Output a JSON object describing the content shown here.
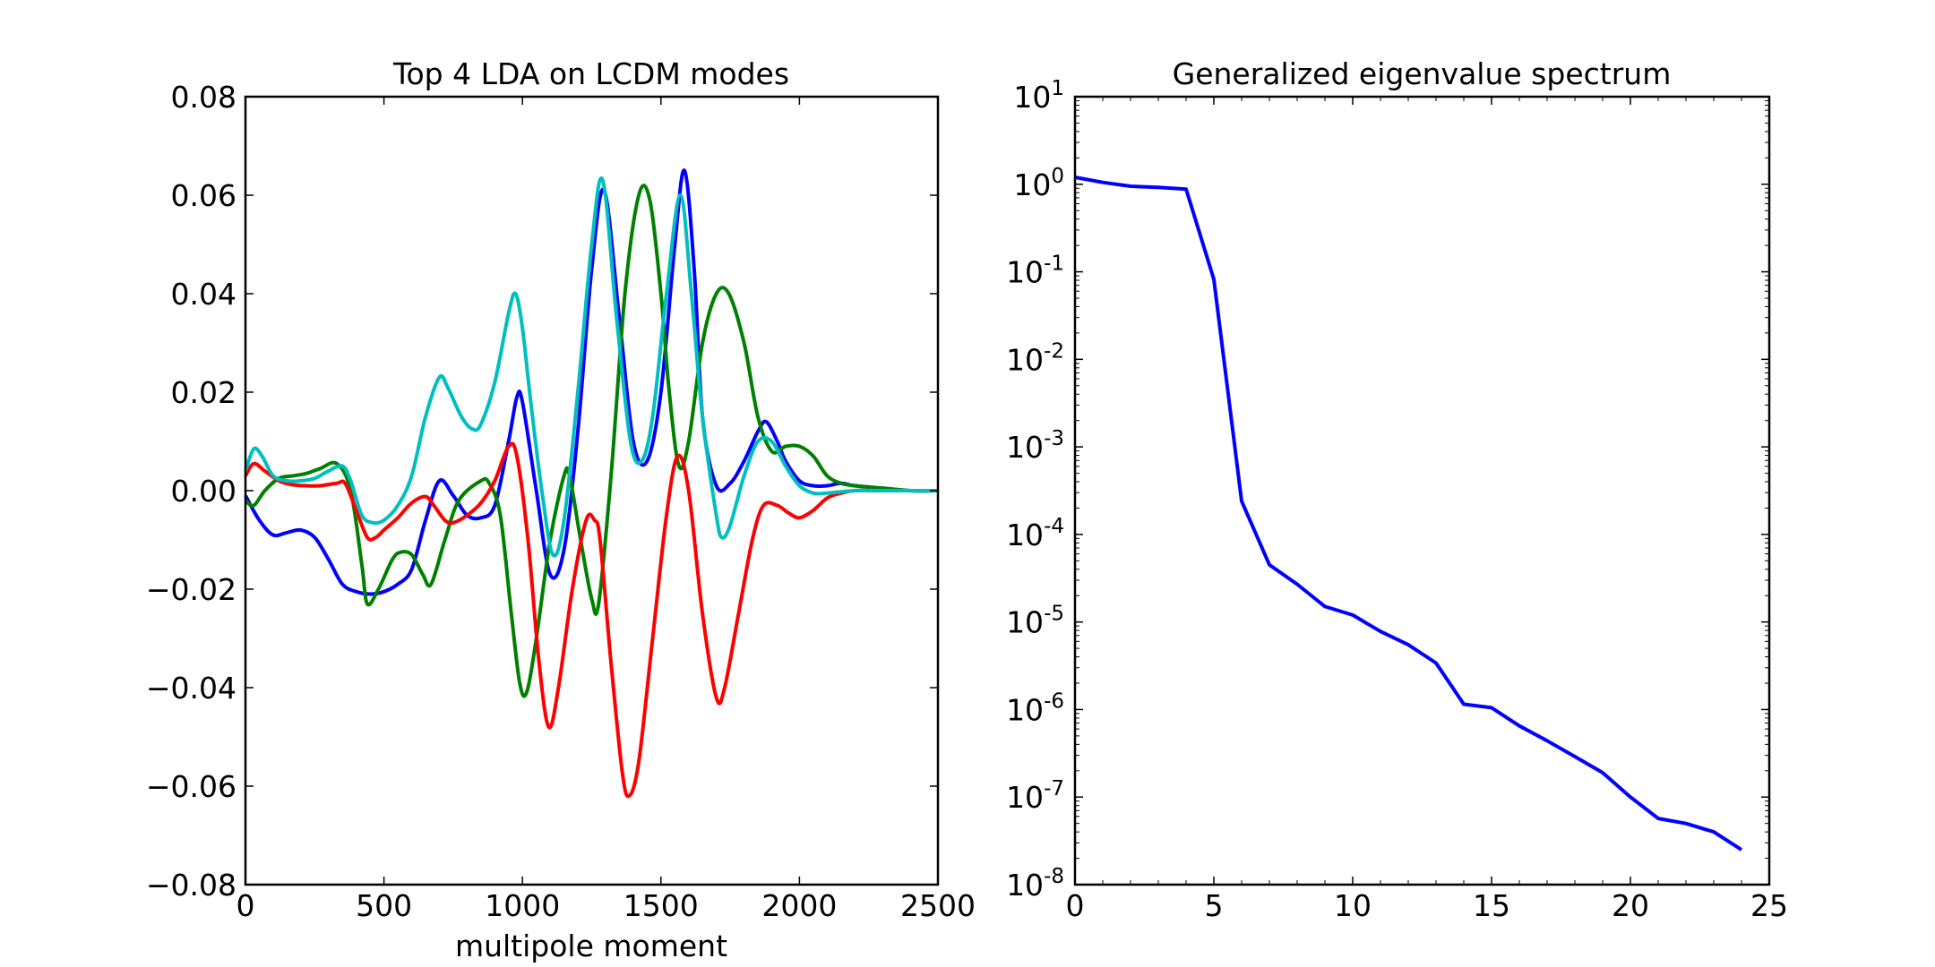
{
  "chart_data": [
    {
      "type": "line",
      "title": "Top 4 LDA on LCDM modes",
      "xlabel": "multipole moment",
      "ylabel": "",
      "xlim": [
        0,
        2500
      ],
      "ylim": [
        -0.08,
        0.08
      ],
      "x_ticks": [
        0,
        500,
        1000,
        1500,
        2000,
        2500
      ],
      "x_tick_labels": [
        "0",
        "500",
        "1000",
        "1500",
        "2000",
        "2500"
      ],
      "y_ticks": [
        -0.08,
        -0.06,
        -0.04,
        -0.02,
        0.0,
        0.02,
        0.04,
        0.06,
        0.08
      ],
      "y_tick_labels": [
        "−0.08",
        "−0.06",
        "−0.04",
        "−0.02",
        "0.00",
        "0.02",
        "0.04",
        "0.06",
        "0.08"
      ],
      "grid": false,
      "legend": "none",
      "series": [
        {
          "color": "#0000ff",
          "x": [
            0,
            50,
            100,
            150,
            200,
            250,
            300,
            350,
            400,
            450,
            500,
            550,
            600,
            650,
            700,
            750,
            800,
            850,
            900,
            950,
            980,
            1000,
            1050,
            1100,
            1150,
            1200,
            1250,
            1295,
            1350,
            1400,
            1450,
            1500,
            1550,
            1585,
            1620,
            1650,
            1700,
            1750,
            1800,
            1850,
            1880,
            1920,
            1950,
            2000,
            2050,
            2100,
            2150,
            2200,
            2300,
            2400,
            2500
          ],
          "y": [
            -0.001,
            -0.006,
            -0.009,
            -0.0085,
            -0.008,
            -0.0095,
            -0.014,
            -0.019,
            -0.0205,
            -0.021,
            -0.0205,
            -0.019,
            -0.016,
            -0.006,
            0.002,
            -0.001,
            -0.005,
            -0.0055,
            -0.003,
            0.01,
            0.019,
            0.018,
            0.0,
            -0.017,
            -0.012,
            0.012,
            0.045,
            0.061,
            0.035,
            0.01,
            0.006,
            0.02,
            0.05,
            0.065,
            0.045,
            0.015,
            0.001,
            0.0015,
            0.006,
            0.012,
            0.014,
            0.01,
            0.006,
            0.002,
            0.001,
            0.001,
            0.0015,
            0.001,
            0.0005,
            0.0,
            0.0
          ]
        },
        {
          "color": "#008000",
          "x": [
            0,
            30,
            70,
            120,
            170,
            220,
            270,
            330,
            380,
            420,
            440,
            480,
            530,
            560,
            600,
            640,
            670,
            720,
            770,
            850,
            880,
            920,
            960,
            990,
            1015,
            1050,
            1100,
            1150,
            1170,
            1210,
            1250,
            1275,
            1320,
            1370,
            1420,
            1460,
            1500,
            1530,
            1565,
            1600,
            1650,
            1700,
            1745,
            1800,
            1850,
            1900,
            1950,
            2000,
            2050,
            2100,
            2150,
            2200,
            2300,
            2400,
            2500
          ],
          "y": [
            -0.002,
            -0.003,
            0.0,
            0.0025,
            0.003,
            0.0035,
            0.0045,
            0.0055,
            0.0,
            -0.015,
            -0.023,
            -0.02,
            -0.014,
            -0.0125,
            -0.013,
            -0.017,
            -0.019,
            -0.01,
            -0.002,
            0.002,
            0.0015,
            -0.005,
            -0.025,
            -0.039,
            -0.041,
            -0.03,
            -0.01,
            0.003,
            0.003,
            -0.01,
            -0.022,
            -0.023,
            0.003,
            0.04,
            0.06,
            0.059,
            0.04,
            0.02,
            0.005,
            0.01,
            0.03,
            0.04,
            0.04,
            0.03,
            0.015,
            0.008,
            0.009,
            0.009,
            0.007,
            0.003,
            0.0015,
            0.001,
            0.0005,
            0.0,
            0.0
          ]
        },
        {
          "color": "#ff0000",
          "x": [
            0,
            30,
            70,
            120,
            170,
            220,
            270,
            330,
            360,
            400,
            440,
            470,
            500,
            550,
            600,
            650,
            680,
            720,
            750,
            800,
            850,
            900,
            950,
            980,
            1020,
            1060,
            1095,
            1130,
            1180,
            1230,
            1260,
            1280,
            1320,
            1360,
            1385,
            1420,
            1470,
            1520,
            1560,
            1600,
            1650,
            1700,
            1730,
            1780,
            1830,
            1870,
            1920,
            1960,
            2000,
            2050,
            2100,
            2150,
            2200,
            2300,
            2400,
            2500
          ],
          "y": [
            0.003,
            0.0055,
            0.004,
            0.002,
            0.0012,
            0.001,
            0.001,
            0.0015,
            0.0015,
            -0.004,
            -0.0095,
            -0.0095,
            -0.008,
            -0.0055,
            -0.0025,
            -0.0012,
            -0.003,
            -0.006,
            -0.0065,
            -0.005,
            -0.0025,
            0.002,
            0.009,
            0.007,
            -0.01,
            -0.035,
            -0.048,
            -0.04,
            -0.02,
            -0.006,
            -0.006,
            -0.01,
            -0.035,
            -0.057,
            -0.062,
            -0.055,
            -0.03,
            -0.005,
            0.007,
            0.0,
            -0.025,
            -0.042,
            -0.04,
            -0.025,
            -0.01,
            -0.003,
            -0.003,
            -0.0045,
            -0.0055,
            -0.004,
            -0.0015,
            -0.0005,
            0.0,
            0.0,
            0.0,
            0.0
          ]
        },
        {
          "color": "#00bfbf",
          "x": [
            0,
            30,
            60,
            100,
            150,
            200,
            250,
            300,
            350,
            380,
            420,
            460,
            500,
            550,
            600,
            650,
            700,
            730,
            780,
            820,
            850,
            900,
            950,
            975,
            1000,
            1030,
            1070,
            1110,
            1150,
            1200,
            1250,
            1290,
            1340,
            1390,
            1430,
            1470,
            1520,
            1570,
            1610,
            1650,
            1700,
            1720,
            1750,
            1800,
            1850,
            1900,
            1950,
            2000,
            2050,
            2100,
            2200,
            2300,
            2400,
            2500
          ],
          "y": [
            0.004,
            0.0085,
            0.007,
            0.003,
            0.002,
            0.002,
            0.0025,
            0.004,
            0.005,
            0.002,
            -0.005,
            -0.0065,
            -0.006,
            -0.003,
            0.003,
            0.015,
            0.023,
            0.021,
            0.015,
            0.0125,
            0.0135,
            0.022,
            0.036,
            0.04,
            0.033,
            0.018,
            0.0,
            -0.013,
            -0.006,
            0.02,
            0.05,
            0.063,
            0.035,
            0.01,
            0.006,
            0.015,
            0.04,
            0.06,
            0.04,
            0.015,
            -0.005,
            -0.0095,
            -0.007,
            0.003,
            0.01,
            0.01,
            0.005,
            0.001,
            -0.0005,
            -0.0005,
            0.0,
            0.0,
            0.0,
            0.0
          ]
        }
      ]
    },
    {
      "type": "line",
      "title": "Generalized eigenvalue spectrum",
      "xlabel": "",
      "ylabel": "",
      "xlim": [
        0,
        25
      ],
      "ylim": [
        1e-08,
        10
      ],
      "yscale": "log",
      "x_ticks": [
        0,
        5,
        10,
        15,
        20,
        25
      ],
      "x_tick_labels": [
        "0",
        "5",
        "10",
        "15",
        "20",
        "25"
      ],
      "y_ticks": [
        {
          "base": "10",
          "exp": "-8",
          "value": 1e-08
        },
        {
          "base": "10",
          "exp": "-7",
          "value": 1e-07
        },
        {
          "base": "10",
          "exp": "-6",
          "value": 1e-06
        },
        {
          "base": "10",
          "exp": "-5",
          "value": 1e-05
        },
        {
          "base": "10",
          "exp": "-4",
          "value": 0.0001
        },
        {
          "base": "10",
          "exp": "-3",
          "value": 0.001
        },
        {
          "base": "10",
          "exp": "-2",
          "value": 0.01
        },
        {
          "base": "10",
          "exp": "-1",
          "value": 0.1
        },
        {
          "base": "10",
          "exp": "0",
          "value": 1
        },
        {
          "base": "10",
          "exp": "1",
          "value": 10
        }
      ],
      "grid": false,
      "legend": "none",
      "series": [
        {
          "color": "#0000ff",
          "x": [
            0,
            1,
            2,
            3,
            4,
            5,
            6,
            7,
            8,
            9,
            10,
            11,
            12,
            13,
            14,
            15,
            16,
            17,
            18,
            19,
            20,
            21,
            22,
            23,
            24
          ],
          "y": [
            1.2,
            1.05,
            0.95,
            0.92,
            0.88,
            0.082,
            0.00024,
            4.5e-05,
            2.7e-05,
            1.5e-05,
            1.2e-05,
            7.8e-06,
            5.5e-06,
            3.4e-06,
            1.15e-06,
            1.05e-06,
            6.5e-07,
            4.4e-07,
            2.9e-07,
            1.9e-07,
            1e-07,
            5.7e-08,
            5e-08,
            4e-08,
            2.5e-08
          ]
        }
      ]
    }
  ]
}
